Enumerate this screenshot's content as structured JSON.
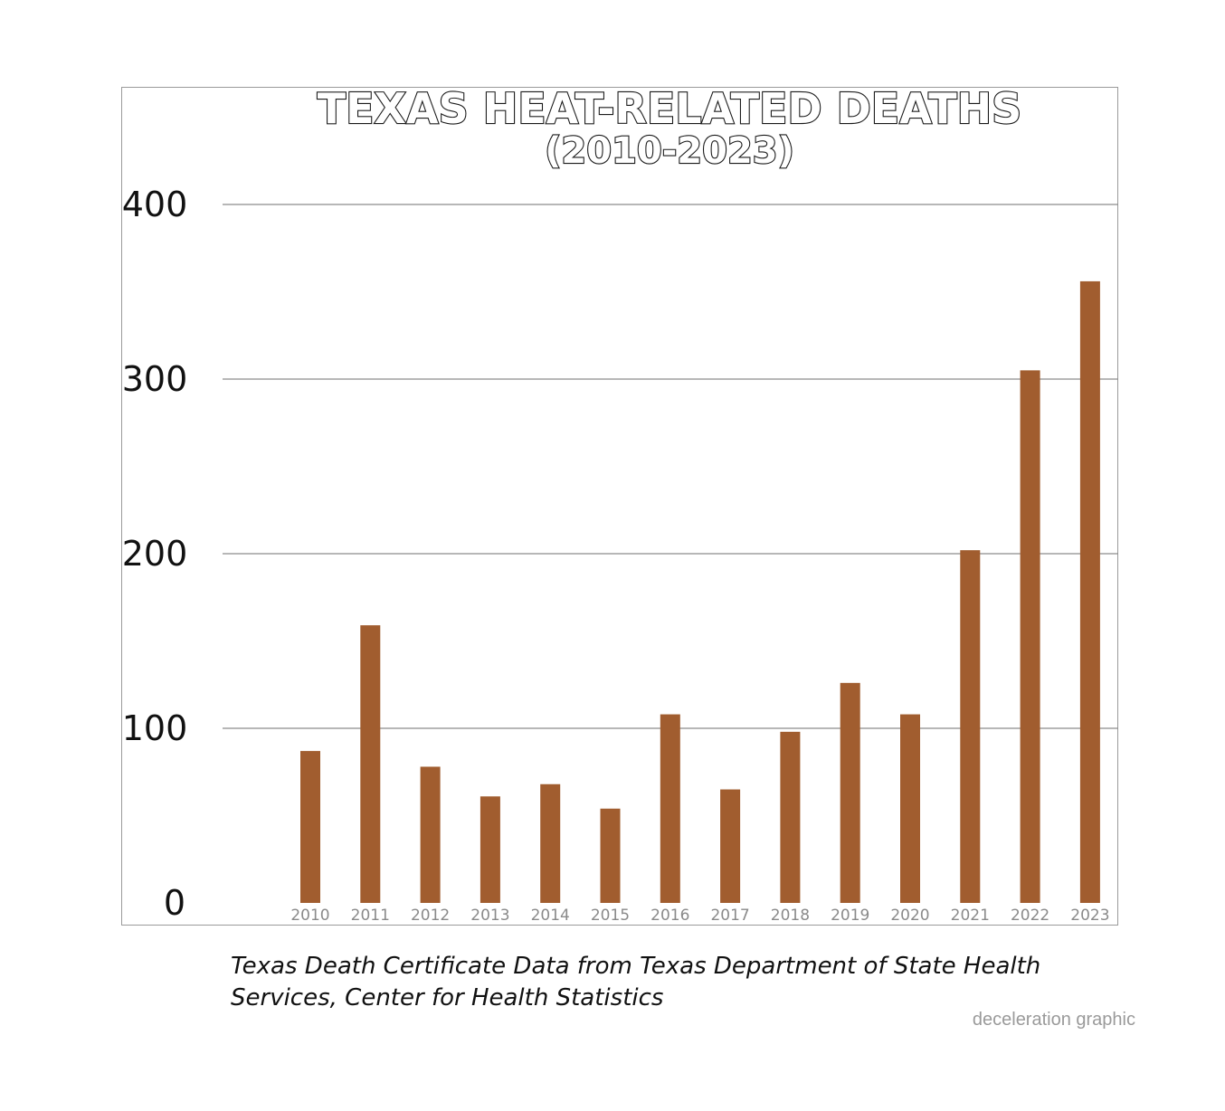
{
  "chart_data": {
    "type": "bar",
    "title": "TEXAS HEAT-RELATED DEATHS",
    "subtitle": "(2010-2023)",
    "categories": [
      "2010",
      "2011",
      "2012",
      "2013",
      "2014",
      "2015",
      "2016",
      "2017",
      "2018",
      "2019",
      "2020",
      "2021",
      "2022",
      "2023"
    ],
    "values": [
      87,
      159,
      78,
      61,
      68,
      54,
      108,
      65,
      98,
      126,
      108,
      202,
      305,
      356
    ],
    "xlabel": "",
    "ylabel": "",
    "ylim": [
      0,
      400
    ],
    "yticks": [
      "0",
      "100",
      "200",
      "300",
      "400"
    ],
    "grid": true,
    "bar_color": "#a15d2f",
    "legend": "none"
  },
  "footer": {
    "source": "Texas Death Certificate Data from Texas Department of State Health Services, Center for Health Statistics",
    "credit": "deceleration graphic"
  }
}
